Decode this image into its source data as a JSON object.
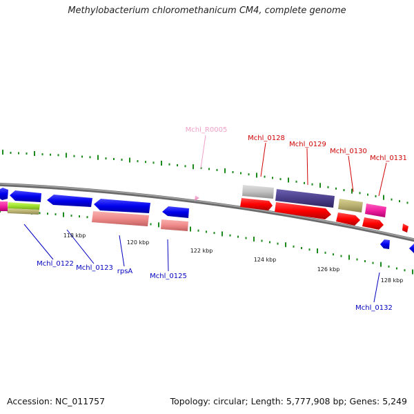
{
  "title": "Methylobacterium chloromethanicum CM4, complete genome",
  "footer": {
    "accession": "Accession: NC_011757",
    "stats": "Topology: circular; Length: 5,777,908 bp; Genes: 5,249"
  },
  "scale_labels": [
    "118 kbp",
    "120 kbp",
    "122 kbp",
    "124 kbp",
    "126 kbp",
    "128 kbp"
  ],
  "gene_labels": [
    {
      "name": "Mchl_R0005",
      "color": "#f0a0c8"
    },
    {
      "name": "Mchl_0128",
      "color": "#d00000"
    },
    {
      "name": "Mchl_0129",
      "color": "#d00000"
    },
    {
      "name": "Mchl_0130",
      "color": "#d00000"
    },
    {
      "name": "Mchl_0131",
      "color": "#d00000"
    },
    {
      "name": "Mchl_0122",
      "color": "#0000c0"
    },
    {
      "name": "Mchl_0123",
      "color": "#0000c0"
    },
    {
      "name": "rpsA",
      "color": "#0000c0"
    },
    {
      "name": "Mchl_0125",
      "color": "#0000c0"
    },
    {
      "name": "Mchl_0132",
      "color": "#0000c0"
    }
  ],
  "colors": {
    "backbone": "#808080",
    "tick": "#1a8a1a",
    "forward_gene": "#ff0000",
    "reverse_gene": "#0000ee",
    "cog_salmon": "#f08a8a",
    "cog_grey": "#c0c0c0",
    "cog_purple": "#4b3f8a",
    "cog_khaki": "#b8b070",
    "cog_magenta": "#f020a0",
    "cog_lime": "#a0e030",
    "rna_pink": "#f0a0c8"
  }
}
